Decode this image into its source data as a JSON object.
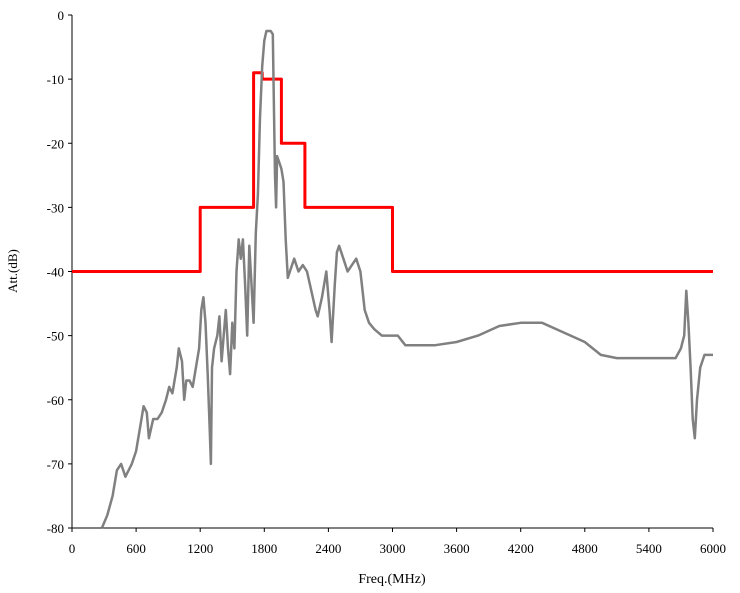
{
  "chart_data": {
    "type": "line",
    "title": "",
    "xlabel": "Freq.(MHz)",
    "ylabel": "Att.(dB)",
    "xlim": [
      0,
      6000
    ],
    "ylim": [
      -80,
      0
    ],
    "x_ticks": [
      0,
      600,
      1200,
      1800,
      2400,
      3000,
      3600,
      4200,
      4800,
      5400,
      6000
    ],
    "y_ticks": [
      0,
      -10,
      -20,
      -30,
      -40,
      -50,
      -60,
      -70,
      -80
    ],
    "x_tick_labels": [
      "0",
      "600",
      "1200",
      "1800",
      "2400",
      "3000",
      "3600",
      "4200",
      "4800",
      "5400",
      "6000"
    ],
    "y_tick_labels": [
      "0",
      "-10",
      "-20",
      "-30",
      "-40",
      "-50",
      "-60",
      "-70",
      "-80"
    ],
    "grid": false,
    "legend": "none",
    "series": [
      {
        "kind": "mask",
        "color": "#ff0000",
        "points": [
          [
            0,
            -40
          ],
          [
            1200,
            -40
          ],
          [
            1200,
            -30
          ],
          [
            1700,
            -30
          ],
          [
            1700,
            -9
          ],
          [
            1780,
            -9
          ],
          [
            1780,
            -10
          ],
          [
            1960,
            -10
          ],
          [
            1960,
            -20
          ],
          [
            2180,
            -20
          ],
          [
            2180,
            -30
          ],
          [
            3000,
            -30
          ],
          [
            3000,
            -40
          ],
          [
            6000,
            -40
          ]
        ]
      },
      {
        "kind": "measured",
        "color": "#808080",
        "points": [
          [
            280,
            -80
          ],
          [
            330,
            -78
          ],
          [
            380,
            -75
          ],
          [
            420,
            -71
          ],
          [
            460,
            -70
          ],
          [
            500,
            -72
          ],
          [
            560,
            -70
          ],
          [
            600,
            -68
          ],
          [
            640,
            -64
          ],
          [
            670,
            -61
          ],
          [
            700,
            -62
          ],
          [
            720,
            -66
          ],
          [
            760,
            -63
          ],
          [
            800,
            -63
          ],
          [
            840,
            -62
          ],
          [
            880,
            -60
          ],
          [
            910,
            -58
          ],
          [
            940,
            -59
          ],
          [
            980,
            -55
          ],
          [
            1000,
            -52
          ],
          [
            1030,
            -54
          ],
          [
            1050,
            -60
          ],
          [
            1070,
            -57
          ],
          [
            1100,
            -57
          ],
          [
            1130,
            -58
          ],
          [
            1160,
            -55
          ],
          [
            1190,
            -52
          ],
          [
            1210,
            -46
          ],
          [
            1230,
            -44
          ],
          [
            1250,
            -48
          ],
          [
            1270,
            -56
          ],
          [
            1290,
            -65
          ],
          [
            1300,
            -70
          ],
          [
            1310,
            -55
          ],
          [
            1330,
            -52
          ],
          [
            1360,
            -50
          ],
          [
            1380,
            -47
          ],
          [
            1400,
            -54
          ],
          [
            1420,
            -50
          ],
          [
            1440,
            -46
          ],
          [
            1460,
            -52
          ],
          [
            1480,
            -56
          ],
          [
            1500,
            -48
          ],
          [
            1520,
            -52
          ],
          [
            1540,
            -40
          ],
          [
            1560,
            -35
          ],
          [
            1580,
            -38
          ],
          [
            1600,
            -35
          ],
          [
            1620,
            -42
          ],
          [
            1640,
            -50
          ],
          [
            1660,
            -36
          ],
          [
            1680,
            -42
          ],
          [
            1700,
            -48
          ],
          [
            1720,
            -34
          ],
          [
            1740,
            -28
          ],
          [
            1760,
            -16
          ],
          [
            1780,
            -8
          ],
          [
            1800,
            -4
          ],
          [
            1820,
            -2.5
          ],
          [
            1840,
            -2.5
          ],
          [
            1860,
            -2.5
          ],
          [
            1880,
            -3
          ],
          [
            1900,
            -25
          ],
          [
            1910,
            -30
          ],
          [
            1920,
            -22
          ],
          [
            1940,
            -23
          ],
          [
            1960,
            -24
          ],
          [
            1980,
            -26
          ],
          [
            2000,
            -35
          ],
          [
            2020,
            -41
          ],
          [
            2040,
            -40
          ],
          [
            2080,
            -38
          ],
          [
            2120,
            -40
          ],
          [
            2160,
            -39
          ],
          [
            2200,
            -40
          ],
          [
            2240,
            -43
          ],
          [
            2280,
            -46
          ],
          [
            2300,
            -47
          ],
          [
            2340,
            -44
          ],
          [
            2380,
            -40
          ],
          [
            2410,
            -46
          ],
          [
            2430,
            -51
          ],
          [
            2460,
            -42
          ],
          [
            2480,
            -37
          ],
          [
            2500,
            -36
          ],
          [
            2540,
            -38
          ],
          [
            2580,
            -40
          ],
          [
            2620,
            -39
          ],
          [
            2660,
            -38
          ],
          [
            2700,
            -40
          ],
          [
            2740,
            -46
          ],
          [
            2780,
            -48
          ],
          [
            2830,
            -49
          ],
          [
            2900,
            -50
          ],
          [
            2980,
            -50
          ],
          [
            3050,
            -50
          ],
          [
            3120,
            -51.5
          ],
          [
            3200,
            -51.5
          ],
          [
            3400,
            -51.5
          ],
          [
            3600,
            -51
          ],
          [
            3800,
            -50
          ],
          [
            4000,
            -48.5
          ],
          [
            4200,
            -48
          ],
          [
            4400,
            -48
          ],
          [
            4600,
            -49.5
          ],
          [
            4800,
            -51
          ],
          [
            4950,
            -53
          ],
          [
            5100,
            -53.5
          ],
          [
            5300,
            -53.5
          ],
          [
            5500,
            -53.5
          ],
          [
            5650,
            -53.5
          ],
          [
            5700,
            -52
          ],
          [
            5730,
            -50
          ],
          [
            5750,
            -43
          ],
          [
            5770,
            -48
          ],
          [
            5790,
            -55
          ],
          [
            5810,
            -63
          ],
          [
            5830,
            -66
          ],
          [
            5850,
            -60
          ],
          [
            5880,
            -55
          ],
          [
            5920,
            -53
          ],
          [
            5960,
            -53
          ],
          [
            6000,
            -53
          ]
        ]
      }
    ]
  }
}
